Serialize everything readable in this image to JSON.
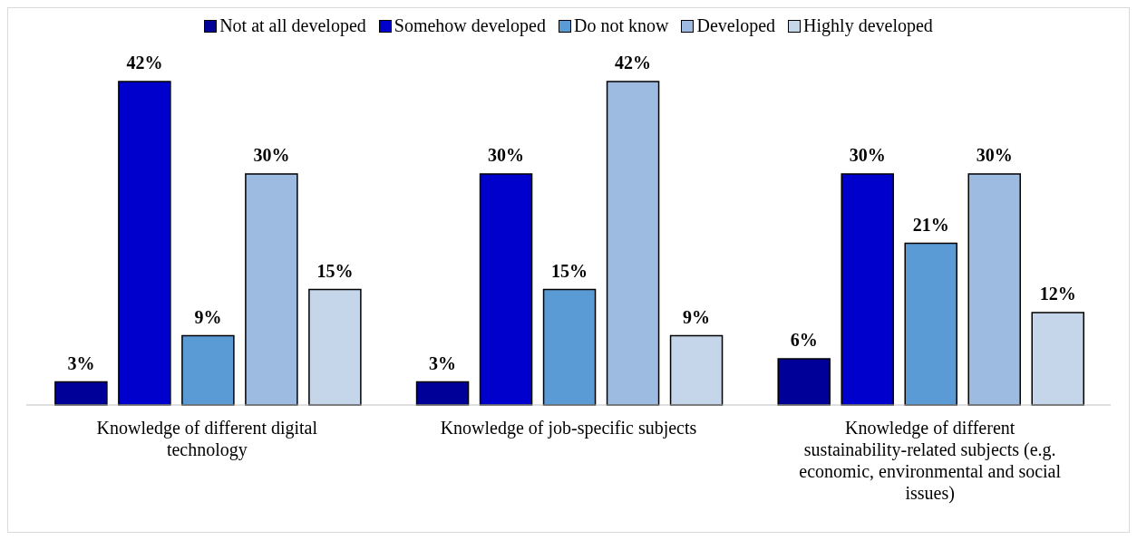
{
  "chart_data": {
    "type": "bar",
    "categories": [
      "Knowledge of different digital technology",
      "Knowledge of job-specific subjects",
      "Knowledge of different sustainability-related subjects (e.g. economic, environmental and social issues)"
    ],
    "series": [
      {
        "name": "Not at all developed",
        "color": "#000099",
        "values": [
          3,
          3,
          6
        ],
        "value_labels": [
          "3%",
          "3%",
          "6%"
        ]
      },
      {
        "name": "Somehow developed",
        "color": "#0000cc",
        "values": [
          42,
          30,
          30
        ],
        "value_labels": [
          "42%",
          "30%",
          "30%"
        ]
      },
      {
        "name": "Do not know",
        "color": "#5b9bd5",
        "values": [
          9,
          15,
          21
        ],
        "value_labels": [
          "9%",
          "15%",
          "21%"
        ]
      },
      {
        "name": "Developed",
        "color": "#9dbbe0",
        "values": [
          30,
          42,
          30
        ],
        "value_labels": [
          "30%",
          "42%",
          "30%"
        ]
      },
      {
        "name": "Highly developed",
        "color": "#c5d5ea",
        "values": [
          15,
          9,
          12
        ],
        "value_labels": [
          "15%",
          "9%",
          "12%"
        ]
      }
    ],
    "legend": "top",
    "grid": false
  }
}
